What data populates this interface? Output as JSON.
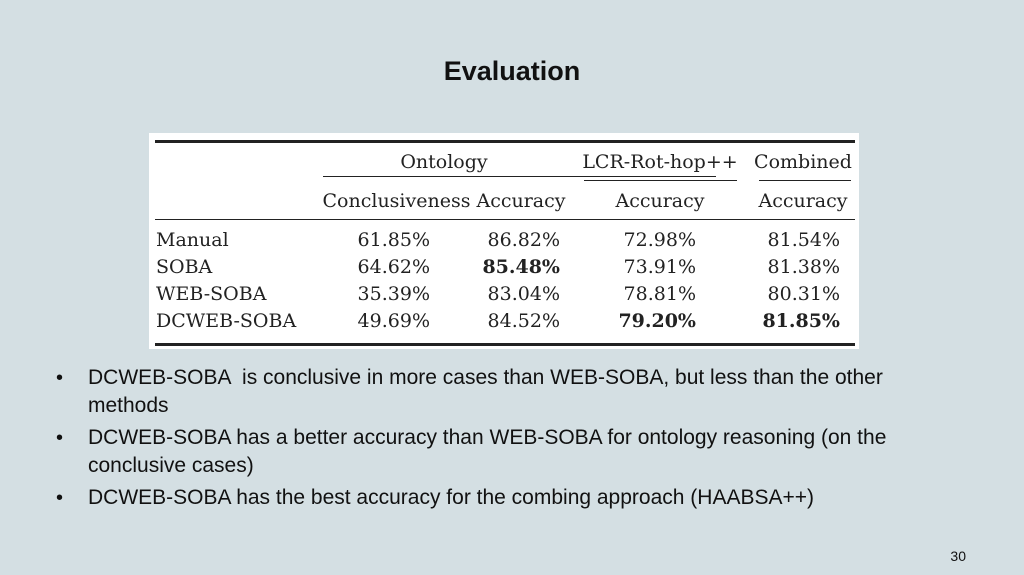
{
  "slide": {
    "title": "Evaluation",
    "page_number": "30"
  },
  "table": {
    "group_headers": [
      "Ontology",
      "LCR-Rot-hop++",
      "Combined"
    ],
    "column_headers": [
      "Conclusiveness",
      "Accuracy",
      "Accuracy",
      "Accuracy"
    ],
    "rows": [
      {
        "method": "Manual",
        "values": [
          "61.85%",
          "86.82%",
          "72.98%",
          "81.54%"
        ],
        "bold": [
          false,
          false,
          false,
          false
        ]
      },
      {
        "method": "SOBA",
        "values": [
          "64.62%",
          "85.48%",
          "73.91%",
          "81.38%"
        ],
        "bold": [
          false,
          true,
          false,
          false
        ]
      },
      {
        "method": "WEB-SOBA",
        "values": [
          "35.39%",
          "83.04%",
          "78.81%",
          "80.31%"
        ],
        "bold": [
          false,
          false,
          false,
          false
        ]
      },
      {
        "method": "DCWEB-SOBA",
        "values": [
          "49.69%",
          "84.52%",
          "79.20%",
          "81.85%"
        ],
        "bold": [
          false,
          false,
          true,
          true
        ]
      }
    ]
  },
  "bullets": [
    "DCWEB-SOBA  is conclusive in more cases than WEB-SOBA, but less than the other methods",
    "DCWEB-SOBA has a better accuracy than WEB-SOBA for ontology reasoning (on the conclusive cases)",
    "DCWEB-SOBA has the best accuracy for the combing approach (HAABSA++)"
  ],
  "bullet_symbol": "•"
}
